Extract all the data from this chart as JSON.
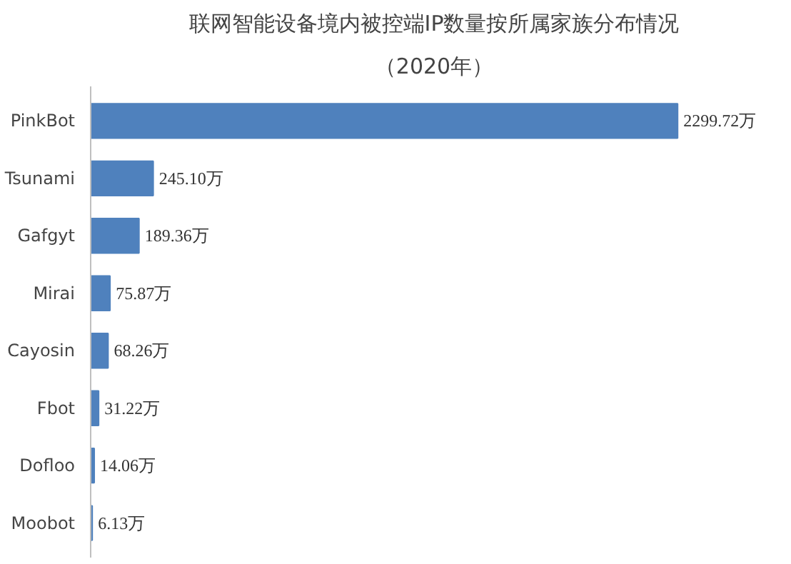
{
  "chart_data": {
    "type": "bar",
    "orientation": "horizontal",
    "title": "联网智能设备境内被控端IP数量按所属家族分布情况",
    "subtitle": "（2020年）",
    "categories": [
      "PinkBot",
      "Tsunami",
      "Gafgyt",
      "Mirai",
      "Cayosin",
      "Fbot",
      "Dofloo",
      "Moobot"
    ],
    "values": [
      2299.72,
      245.1,
      189.36,
      75.87,
      68.26,
      31.22,
      14.06,
      6.13
    ],
    "value_labels": [
      "2299.72万",
      "245.10万",
      "189.36万",
      "75.87万",
      "68.26万",
      "31.22万",
      "14.06万",
      "6.13万"
    ],
    "color": "#4f81bd",
    "grid": false
  }
}
